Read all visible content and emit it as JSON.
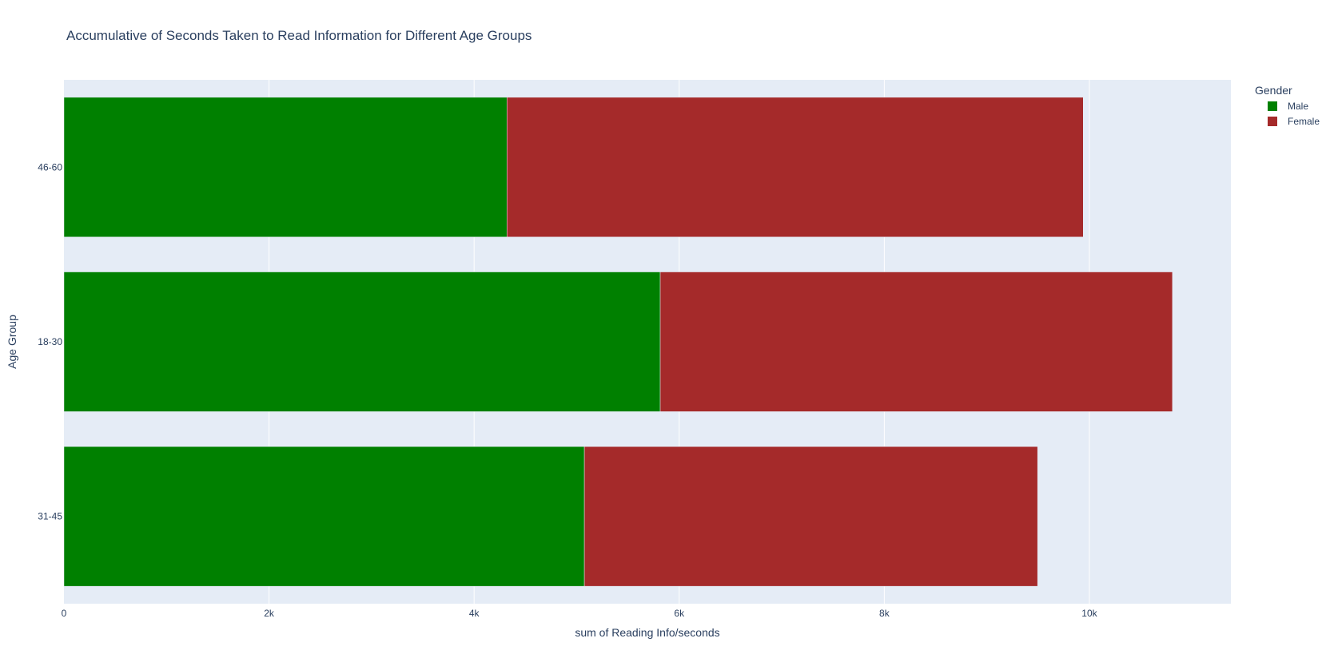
{
  "chart_data": {
    "type": "bar",
    "orientation": "horizontal",
    "barmode": "stack",
    "title": "Accumulative of Seconds Taken to Read Information for Different Age Groups",
    "xlabel": "sum of Reading Info/seconds",
    "ylabel": "Age Group",
    "categories": [
      "31-45",
      "18-30",
      "46-60"
    ],
    "xlim": [
      0,
      11380
    ],
    "x_ticks": [
      0,
      2000,
      4000,
      6000,
      8000,
      10000
    ],
    "x_tick_labels": [
      "0",
      "2k",
      "4k",
      "6k",
      "8k",
      "10k"
    ],
    "grid": true,
    "legend": {
      "title": "Gender",
      "placement": "top-right"
    },
    "series": [
      {
        "name": "Male",
        "color": "#008000",
        "values": [
          5075,
          5815,
          4320
        ]
      },
      {
        "name": "Female",
        "color": "#a52a2a",
        "values": [
          4420,
          4995,
          5620
        ]
      }
    ],
    "plot_background": "#e5ecf6"
  }
}
